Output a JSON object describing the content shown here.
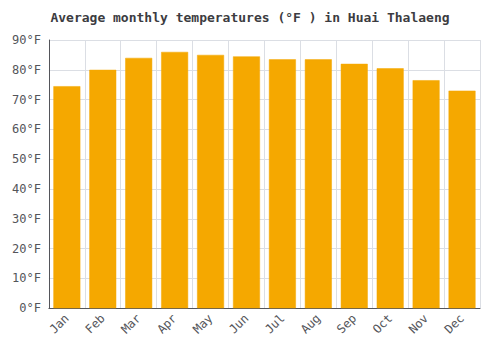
{
  "chart_data": {
    "type": "bar",
    "title": "Average monthly temperatures (°F ) in Huai Thalaeng",
    "categories": [
      "Jan",
      "Feb",
      "Mar",
      "Apr",
      "May",
      "Jun",
      "Jul",
      "Aug",
      "Sep",
      "Oct",
      "Nov",
      "Dec"
    ],
    "values": [
      74.5,
      80.0,
      84.0,
      86.0,
      85.0,
      84.5,
      83.5,
      83.5,
      82.0,
      80.5,
      76.5,
      73.0
    ],
    "color": "#F5A800",
    "ylim": [
      0,
      90
    ],
    "yticks": [
      {
        "value": 0,
        "label": "0°F"
      },
      {
        "value": 10,
        "label": "10°F"
      },
      {
        "value": 20,
        "label": "20°F"
      },
      {
        "value": 30,
        "label": "30°F"
      },
      {
        "value": 40,
        "label": "40°F"
      },
      {
        "value": 50,
        "label": "50°F"
      },
      {
        "value": 60,
        "label": "60°F"
      },
      {
        "value": 70,
        "label": "70°F"
      },
      {
        "value": 80,
        "label": "80°F"
      },
      {
        "value": 90,
        "label": "90°F"
      }
    ],
    "grid": true
  }
}
